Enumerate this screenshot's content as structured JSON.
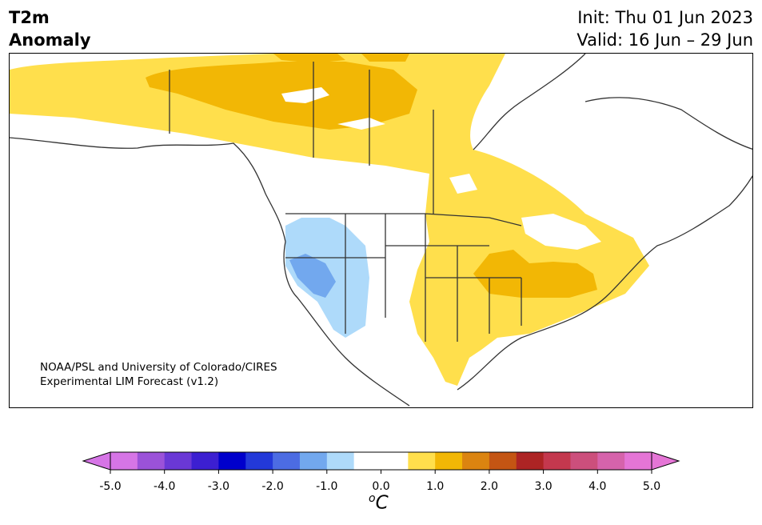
{
  "header": {
    "title_line1": "T2m",
    "title_line2": "Anomaly",
    "init": "Init: Thu 01 Jun 2023",
    "valid": "Valid: 16 Jun – 29 Jun"
  },
  "map": {
    "credit_line1": "NOAA/PSL and University of Colorado/CIRES",
    "credit_line2": "Experimental LIM Forecast (v1.2)"
  },
  "colorbar": {
    "ticks": [
      "-5.0",
      "-4.0",
      "-3.0",
      "-2.0",
      "-1.0",
      "0.0",
      "1.0",
      "2.0",
      "3.0",
      "4.0",
      "5.0"
    ],
    "unit_symbol": "o",
    "unit_letter": "C",
    "colors": [
      "#d675e6",
      "#9b52d9",
      "#6a38d6",
      "#3c1fd1",
      "#0000cc",
      "#2339d9",
      "#4c6ce3",
      "#72a8ee",
      "#aedafa",
      "#ffffff",
      "#ffffff",
      "#ffdf4c",
      "#f2b705",
      "#db8410",
      "#c45513",
      "#ad2424",
      "#c4384e",
      "#cc4f7c",
      "#d663ab",
      "#e575d6"
    ]
  }
}
